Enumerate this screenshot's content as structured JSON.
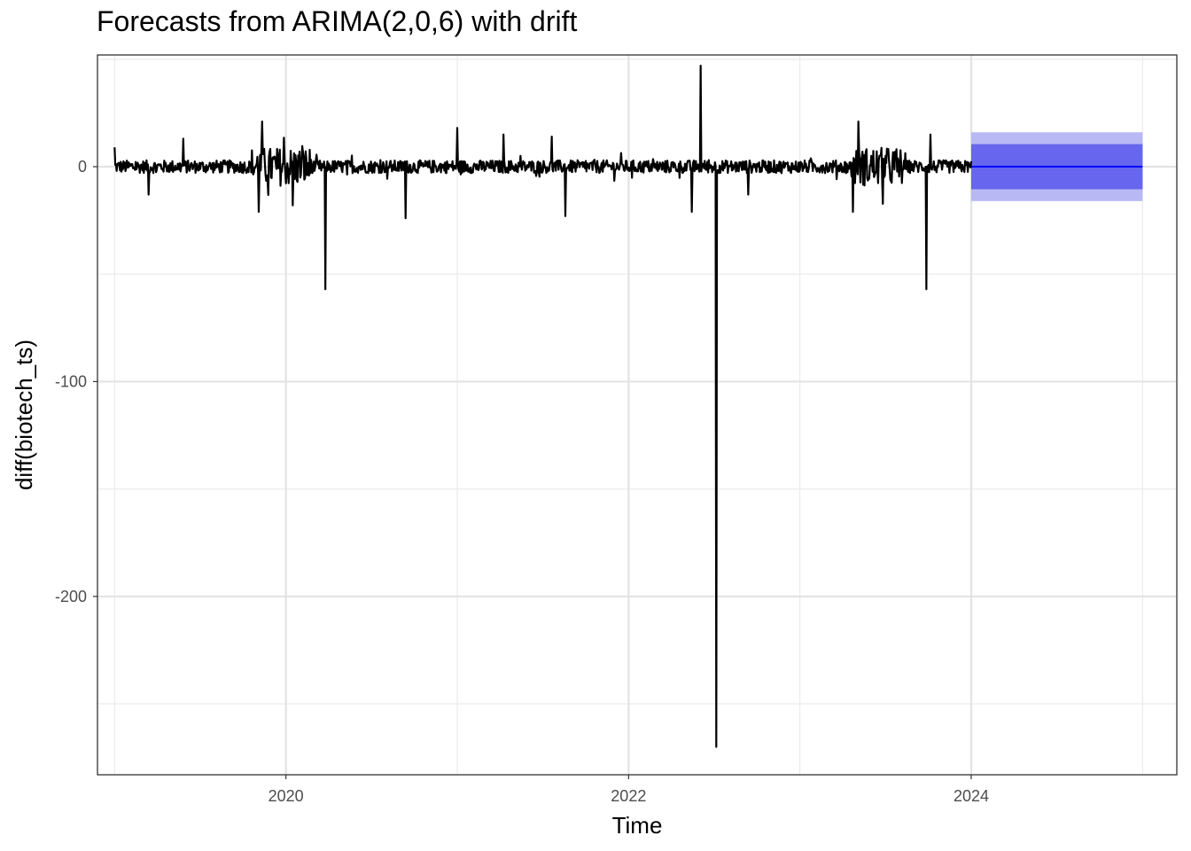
{
  "chart_data": {
    "type": "line",
    "title": "Forecasts from ARIMA(2,0,6) with drift",
    "xlabel": "Time",
    "ylabel": "diff(biotech_ts)",
    "xlim": [
      2018.9,
      2025.2
    ],
    "ylim": [
      -283,
      52
    ],
    "x_ticks": [
      2020,
      2022,
      2024
    ],
    "x_tick_labels": [
      "2020",
      "2022",
      "2024"
    ],
    "y_ticks": [
      0,
      -100,
      -200
    ],
    "y_tick_labels": [
      "0",
      "-100",
      "-200"
    ],
    "grid": true,
    "legend": "none",
    "series": [
      {
        "role": "observed",
        "color": "#000000",
        "x_start": 2019.0,
        "x_end": 2024.0,
        "noise_amplitude": 3,
        "volatile_periods": [
          {
            "from": 2019.8,
            "to": 2020.15,
            "amplitude": 9
          },
          {
            "from": 2023.3,
            "to": 2023.6,
            "amplitude": 9
          }
        ],
        "spikes": [
          {
            "x": 2019.0,
            "y": 9
          },
          {
            "x": 2019.2,
            "y": -13
          },
          {
            "x": 2019.4,
            "y": 13
          },
          {
            "x": 2019.86,
            "y": 21
          },
          {
            "x": 2019.84,
            "y": -21
          },
          {
            "x": 2020.04,
            "y": -18
          },
          {
            "x": 2020.23,
            "y": -57
          },
          {
            "x": 2020.7,
            "y": -24
          },
          {
            "x": 2021.0,
            "y": 18
          },
          {
            "x": 2021.27,
            "y": 15
          },
          {
            "x": 2021.55,
            "y": 14
          },
          {
            "x": 2021.63,
            "y": 26
          },
          {
            "x": 2021.63,
            "y": -23
          },
          {
            "x": 2022.37,
            "y": -21
          },
          {
            "x": 2022.42,
            "y": 47
          },
          {
            "x": 2022.51,
            "y": -270
          },
          {
            "x": 2022.7,
            "y": -13
          },
          {
            "x": 2023.34,
            "y": 21
          },
          {
            "x": 2023.31,
            "y": -21
          },
          {
            "x": 2023.74,
            "y": -57
          },
          {
            "x": 2023.76,
            "y": 15
          }
        ]
      },
      {
        "role": "forecast",
        "color": "#0000ff",
        "x_start": 2024.0,
        "x_end": 2025.0,
        "point": 0,
        "interval_80": [
          -10.5,
          10.5
        ],
        "interval_95": [
          -16,
          16
        ],
        "interval_80_color": "#6666ee",
        "interval_95_color": "#b8b8f5"
      }
    ]
  }
}
